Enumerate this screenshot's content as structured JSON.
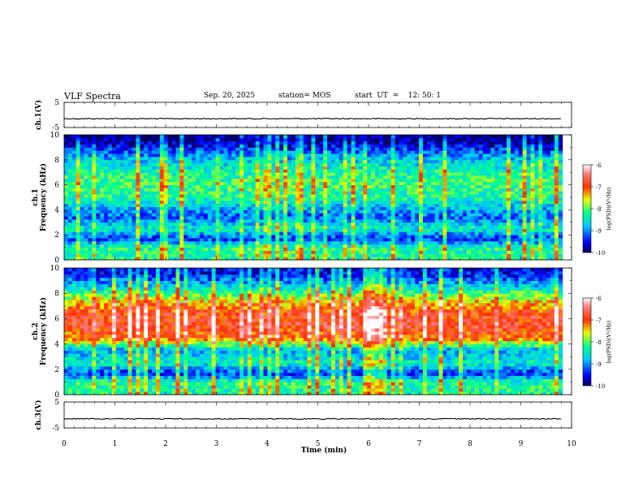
{
  "header": {
    "title": "VLF Spectra",
    "date": "Sep. 20, 2025",
    "station": "station= MOS",
    "start_ut": "start  UT  =    12: 50: 1"
  },
  "chart_data": {
    "type": "heatmap",
    "title": "VLF Spectra",
    "xlabel": "Time (min)",
    "x_ticks": [
      "0",
      "1",
      "2",
      "3",
      "4",
      "5",
      "6",
      "7",
      "8",
      "9",
      "10"
    ],
    "xlim": [
      0,
      10
    ],
    "data_end_min": 9.82,
    "panels": [
      {
        "name": "ch1-waveform",
        "type": "line",
        "ylabel": "ch.1(V)",
        "y_ticks": [
          "5",
          "-5"
        ],
        "ylim": [
          -5,
          5
        ],
        "baseline": -1.5
      },
      {
        "name": "ch1-spectrogram",
        "type": "heatmap",
        "ylabel": "ch.1\nFrequency (kHz)",
        "y_ticks": [
          "0",
          "2",
          "4",
          "6",
          "8",
          "10"
        ],
        "ylim": [
          0,
          10
        ],
        "colorbar": {
          "label": "log(PSD)(V²/Hz)",
          "ticks": [
            "-6",
            "-7",
            "-8",
            "-9",
            "-10"
          ],
          "range": [
            -10,
            -6
          ]
        },
        "profile": {
          "freq_khz": [
            0.3,
            1.0,
            1.7,
            2.5,
            3.5,
            5.0,
            6.0,
            7.0,
            8.0,
            8.8,
            9.5
          ],
          "log_psd": [
            -8.3,
            -8.2,
            -9.4,
            -8.4,
            -9.2,
            -8.3,
            -8.1,
            -8.3,
            -8.7,
            -9.3,
            -9.9
          ]
        }
      },
      {
        "name": "ch2-spectrogram",
        "type": "heatmap",
        "ylabel": "ch.2\nFrequency (kHz)",
        "y_ticks": [
          "0",
          "2",
          "4",
          "6",
          "8",
          "10"
        ],
        "ylim": [
          0,
          10
        ],
        "colorbar": {
          "label": "log(PSD)(V²/Hz)",
          "ticks": [
            "-6",
            "-7",
            "-8",
            "-9",
            "-10"
          ],
          "range": [
            -10,
            -6
          ]
        },
        "profile": {
          "freq_khz": [
            0.3,
            1.0,
            1.7,
            2.5,
            3.5,
            4.5,
            5.5,
            6.5,
            7.5,
            8.5,
            9.5
          ],
          "log_psd": [
            -8.3,
            -8.2,
            -9.4,
            -8.4,
            -8.9,
            -7.1,
            -6.8,
            -6.9,
            -7.6,
            -8.6,
            -9.5
          ]
        }
      },
      {
        "name": "ch3-waveform",
        "type": "line",
        "ylabel": "ch.3(V)",
        "y_ticks": [
          "5",
          "-5"
        ],
        "ylim": [
          -5,
          5
        ],
        "baseline": -1.5
      }
    ]
  }
}
